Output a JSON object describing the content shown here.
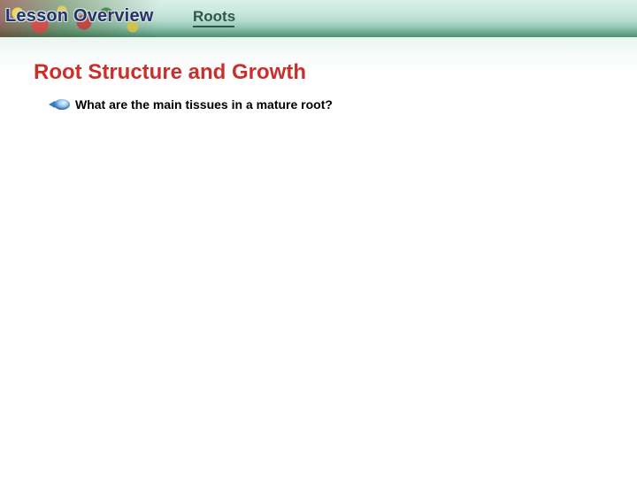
{
  "header": {
    "lesson_overview": "Lesson Overview",
    "topic": "Roots"
  },
  "section": {
    "title": "Root Structure and Growth"
  },
  "bullet": {
    "question": "What are the main tissues in a mature root?"
  },
  "colors": {
    "title_color": "#c9302c",
    "header_text_color": "#2b2f6b",
    "topic_color": "#2b5a48",
    "bullet_blue": "#3a78c2"
  }
}
